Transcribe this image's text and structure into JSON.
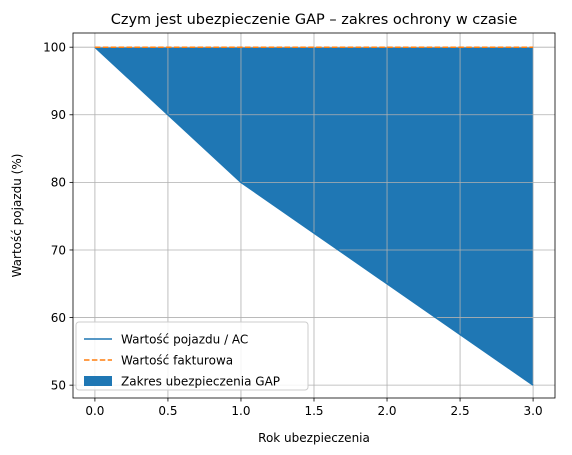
{
  "chart_data": {
    "type": "area",
    "title": "Czym jest ubezpieczenie GAP – zakres ochrony w czasie",
    "xlabel": "Rok ubezpieczenia",
    "ylabel": "Wartość pojazdu (%)",
    "xlim": [
      -0.15,
      3.15
    ],
    "ylim": [
      48.1,
      102.1
    ],
    "x_ticks": [
      0.0,
      0.5,
      1.0,
      1.5,
      2.0,
      2.5,
      3.0
    ],
    "x_tick_labels": [
      "0.0",
      "0.5",
      "1.0",
      "1.5",
      "2.0",
      "2.5",
      "3.0"
    ],
    "y_ticks": [
      50,
      60,
      70,
      80,
      90,
      100
    ],
    "y_tick_labels": [
      "50",
      "60",
      "70",
      "80",
      "90",
      "100"
    ],
    "grid": true,
    "legend_position": "lower-left",
    "x": [
      0,
      0.5,
      1,
      1.5,
      2,
      2.5,
      3
    ],
    "series": [
      {
        "name": "Wartość pojazdu / AC",
        "kind": "line",
        "style": "solid",
        "color": "#1f77b4",
        "values": [
          100,
          90,
          80,
          72.5,
          65,
          57.5,
          50
        ]
      },
      {
        "name": "Wartość fakturowa",
        "kind": "line",
        "style": "dashed",
        "color": "#ff7f0e",
        "values": [
          100,
          100,
          100,
          100,
          100,
          100,
          100
        ]
      },
      {
        "name": "Zakres ubezpieczenia GAP",
        "kind": "fill_between",
        "color": "#1f77b4",
        "between": [
          "Wartość pojazdu / AC",
          "Wartość fakturowa"
        ]
      }
    ]
  }
}
